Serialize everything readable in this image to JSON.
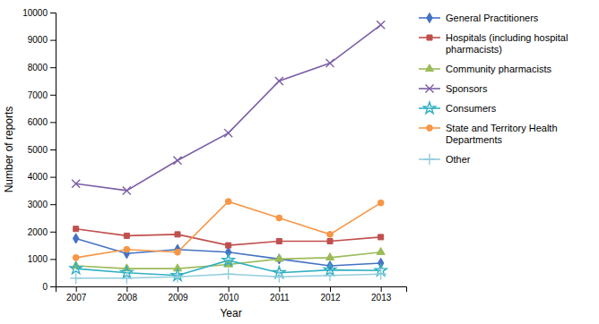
{
  "chart_data": {
    "type": "line",
    "x": [
      2007,
      2008,
      2009,
      2010,
      2011,
      2012,
      2013
    ],
    "xlim": [
      2006.6,
      2013.5
    ],
    "xticks": [
      2007,
      2008,
      2009,
      2010,
      2011,
      2012,
      2013
    ],
    "ylim": [
      0,
      10000
    ],
    "yticks": [
      0,
      1000,
      2000,
      3000,
      4000,
      5000,
      6000,
      7000,
      8000,
      9000,
      10000
    ],
    "xlabel": "Year",
    "ylabel": "Number of reports",
    "grid": false,
    "legend": "right",
    "series": [
      {
        "name": "General Practitioners",
        "color": "#4472C4",
        "marker": "diamond",
        "values": [
          1750,
          1200,
          1350,
          1250,
          1000,
          750,
          850
        ]
      },
      {
        "name": "Hospitals (including hospital\npharmacists)",
        "color": "#C0504D",
        "marker": "square",
        "values": [
          2100,
          1850,
          1900,
          1500,
          1650,
          1650,
          1800
        ]
      },
      {
        "name": "Community pharmacists",
        "color": "#9BBB59",
        "marker": "triangle",
        "values": [
          750,
          650,
          650,
          800,
          1000,
          1050,
          1250
        ]
      },
      {
        "name": "Sponsors",
        "color": "#7B5EA7",
        "marker": "x",
        "values": [
          3750,
          3500,
          4600,
          5600,
          7500,
          8150,
          9550
        ]
      },
      {
        "name": "Consumers",
        "color": "#31B0C2",
        "marker": "star",
        "values": [
          650,
          500,
          400,
          950,
          500,
          600,
          580
        ]
      },
      {
        "name": "State and Territory Health\nDepartments",
        "color": "#F79646",
        "marker": "circle",
        "values": [
          1050,
          1350,
          1250,
          3100,
          2500,
          1900,
          3050
        ]
      },
      {
        "name": "Other",
        "color": "#92CDDC",
        "marker": "plus",
        "values": [
          300,
          300,
          350,
          450,
          350,
          400,
          450
        ]
      }
    ]
  }
}
